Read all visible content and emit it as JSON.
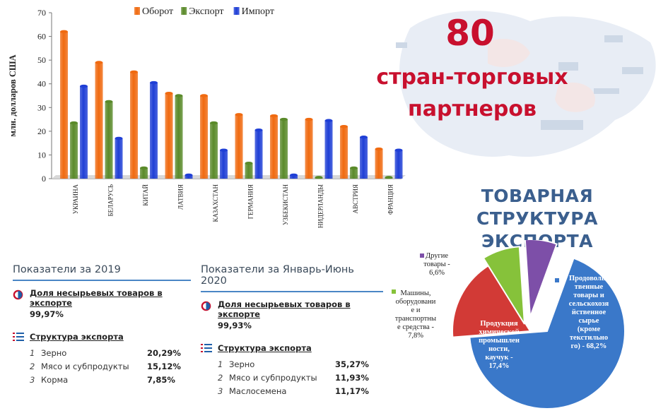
{
  "partners": {
    "number": "80",
    "line1": "стран-торговых",
    "line2": "партнеров"
  },
  "structure_title_line1": "ТОВАРНАЯ СТРУКТУРА",
  "structure_title_line2": "ЭКСПОРТА",
  "panel_2019": {
    "title": "Показатели за 2019",
    "share_label": "Доля несырьевых товаров в экспорте",
    "share_value": "99,97%",
    "list_title": "Структура экспорта",
    "items": [
      {
        "num": "1",
        "name": "Зерно",
        "value": "20,29%"
      },
      {
        "num": "2",
        "name": "Мясо и субпродукты",
        "value": "15,12%"
      },
      {
        "num": "3",
        "name": "Корма",
        "value": "7,85%"
      }
    ]
  },
  "panel_2020": {
    "title": "Показатели за Январь-Июнь 2020",
    "share_label": "Доля несырьевых товаров в экспорте",
    "share_value": "99,93%",
    "list_title": "Структура экспорта",
    "items": [
      {
        "num": "1",
        "name": "Зерно",
        "value": "35,27%"
      },
      {
        "num": "2",
        "name": "Мясо и субпродукты",
        "value": "11,93%"
      },
      {
        "num": "3",
        "name": "Маслосемена",
        "value": "11,17%"
      }
    ]
  },
  "colors": {
    "accent_red": "#c8102e",
    "title_blue": "#3b5f8e",
    "panel_line": "#4a86c5"
  },
  "chart_data": [
    {
      "type": "bar",
      "ylabel": "млн. долларов США",
      "ylim": [
        0,
        70
      ],
      "yticks": [
        0,
        10,
        20,
        30,
        40,
        50,
        60,
        70
      ],
      "legend_position": "top",
      "categories": [
        "УКРАИНА",
        "БЕЛАРУСЬ",
        "КИТАЙ",
        "ЛАТВИЯ",
        "КАЗАХСТАН",
        "ГЕРМАНИЯ",
        "УЗБЕКИСТАН",
        "НИДЕРЛАНДЫ",
        "АВСТРИЯ",
        "ФРАНЦИЯ"
      ],
      "series": [
        {
          "name": "Оборот",
          "color": "#f06a10",
          "values": [
            62,
            49,
            45,
            36,
            35,
            27,
            26.5,
            25,
            22,
            12.5
          ]
        },
        {
          "name": "Экспорт",
          "color": "#5a8a2a",
          "values": [
            23.5,
            32.5,
            4.5,
            35,
            23.5,
            6.5,
            25,
            0.5,
            4.5,
            0.5
          ]
        },
        {
          "name": "Импорт",
          "color": "#1f3fd6",
          "values": [
            39,
            17,
            40.5,
            1.5,
            12,
            20.5,
            1.5,
            24.5,
            17.5,
            12
          ]
        }
      ]
    },
    {
      "type": "pie",
      "slices": [
        {
          "label": "Продовольственные товары и сельскохозяйственное сырье (кроме текстильного) - 68,2%",
          "value": 68.2,
          "color": "#3a78c9"
        },
        {
          "label": "Продукция химической промышленности, каучук - 17,4%",
          "value": 17.4,
          "color": "#d23a36"
        },
        {
          "label": "Машины, оборудование и транспортные средства - 7,8%",
          "value": 7.8,
          "color": "#86c23a"
        },
        {
          "label": "Другие товары - 6,6%",
          "value": 6.6,
          "color": "#7d4fa8"
        }
      ]
    }
  ]
}
